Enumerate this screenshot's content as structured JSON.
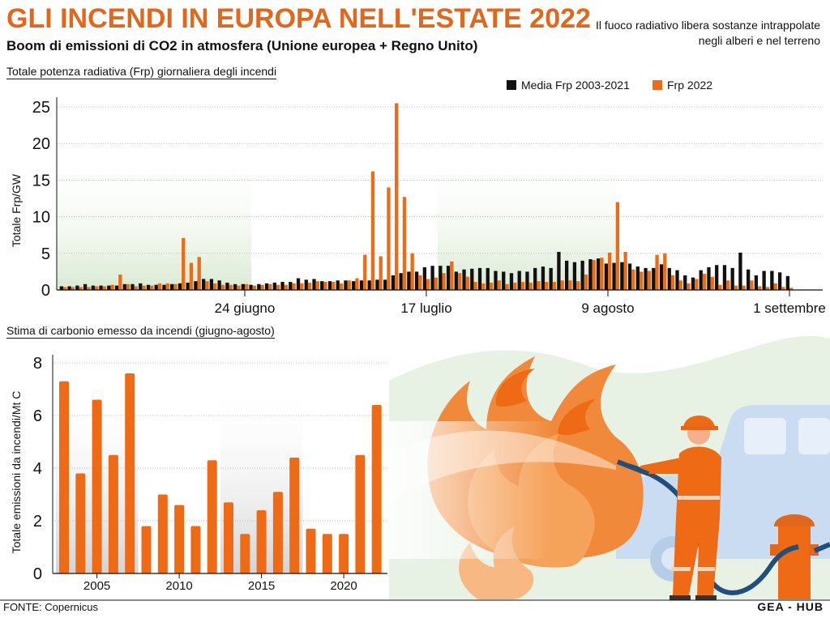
{
  "header": {
    "title": "GLI INCENDI IN EUROPA NELL'ESTATE 2022",
    "subtitle": "Boom di emissioni di CO2 in atmosfera (Unione europea + Regno Unito)",
    "note_line1": "Il fuoco radiativo libera sostanze intrappolate",
    "note_line2": "negli alberi e nel terreno"
  },
  "footer": {
    "source": "FONTE: Copernicus",
    "credit": "GEA - HUB"
  },
  "colors": {
    "title": "#e2661b",
    "frp_2022": "#ee6a14",
    "frp_mean": "#111111",
    "emissions": "#ee6a14",
    "highlight_green": "#e4f0df",
    "highlight_gray": "#dcdcdc"
  },
  "illustration": "firefighter-hosing-fire-illustration",
  "chart_data": [
    {
      "type": "bar",
      "section_label": "Totale potenza radiativa (Frp) giornaliera degli incendi",
      "ylabel": "Totale Frp/GW",
      "xlabel": "",
      "ylim": [
        0,
        25
      ],
      "yticks": [
        0,
        5,
        10,
        15,
        20,
        25
      ],
      "xtick_labels": [
        {
          "label": "24 giugno",
          "day": 23
        },
        {
          "label": "17 luglio",
          "day": 46
        },
        {
          "label": "9 agosto",
          "day": 69
        },
        {
          "label": "1 settembre",
          "day": 92
        }
      ],
      "day_start": "1 giugno",
      "grid": true,
      "legend": "top-right",
      "series": [
        {
          "name": "Media Frp 2003-2021",
          "values": [
            0.5,
            0.5,
            0.6,
            0.8,
            0.6,
            0.6,
            0.6,
            0.6,
            0.8,
            0.8,
            0.9,
            0.7,
            0.7,
            0.7,
            0.8,
            0.9,
            1.0,
            1.2,
            1.5,
            1.5,
            1.3,
            1.0,
            0.8,
            0.8,
            0.7,
            0.8,
            0.9,
            1.0,
            1.1,
            1.1,
            1.6,
            1.4,
            1.5,
            1.2,
            1.2,
            1.3,
            1.3,
            1.2,
            1.3,
            1.3,
            1.4,
            1.4,
            2.0,
            2.3,
            2.5,
            2.5,
            3.1,
            3.3,
            3.3,
            3.3,
            2.5,
            2.8,
            2.9,
            3.0,
            3.0,
            2.6,
            2.5,
            2.3,
            2.6,
            2.5,
            3.0,
            3.2,
            3.0,
            5.2,
            4.0,
            3.8,
            4.0,
            4.2,
            4.3,
            3.6,
            3.7,
            3.8,
            3.6,
            3.2,
            3.0,
            3.0,
            3.5,
            3.0,
            2.7,
            2.0,
            1.7,
            2.7,
            3.1,
            3.4,
            3.4,
            3.0,
            5.1,
            2.8,
            2.0,
            2.6,
            2.6,
            2.4,
            1.9
          ]
        },
        {
          "name": "Frp 2022",
          "values": [
            0.4,
            0.4,
            0.4,
            0.4,
            0.5,
            0.5,
            0.7,
            2.1,
            0.8,
            0.5,
            0.6,
            0.6,
            0.9,
            0.9,
            0.8,
            7.1,
            3.7,
            4.5,
            1.2,
            0.9,
            0.7,
            0.7,
            0.6,
            0.8,
            0.6,
            0.7,
            0.8,
            0.7,
            0.7,
            0.9,
            0.9,
            1.0,
            1.2,
            1.1,
            1.1,
            0.9,
            1.3,
            1.6,
            4.8,
            16.2,
            4.6,
            14.0,
            25.5,
            12.7,
            5.0,
            2.0,
            1.5,
            1.7,
            2.3,
            3.9,
            2.3,
            1.8,
            1.1,
            0.9,
            1.0,
            1.3,
            0.8,
            1.0,
            1.1,
            1.0,
            1.2,
            1.1,
            1.1,
            1.3,
            1.3,
            1.2,
            2.1,
            4.1,
            4.4,
            5.1,
            12.0,
            5.2,
            2.8,
            2.5,
            2.6,
            4.8,
            5.0,
            2.0,
            1.3,
            0.9,
            1.5,
            2.2,
            1.8,
            0.7,
            1.3,
            0.6,
            0.6,
            1.3,
            0.5,
            0.4,
            0.9,
            0.4,
            0.3
          ]
        }
      ]
    },
    {
      "type": "bar",
      "section_label": "Stima di carbonio emesso da incendi (giugno-agosto)",
      "ylabel": "Totale emissioni da incendi/Mt C",
      "xlabel": "",
      "ylim": [
        0,
        8
      ],
      "yticks": [
        0,
        2,
        4,
        6,
        8
      ],
      "xtick_labels": [
        "2005",
        "2010",
        "2015",
        "2020"
      ],
      "categories": [
        "2003",
        "2004",
        "2005",
        "2006",
        "2007",
        "2008",
        "2009",
        "2010",
        "2011",
        "2012",
        "2013",
        "2014",
        "2015",
        "2016",
        "2017",
        "2018",
        "2019",
        "2020",
        "2021",
        "2022"
      ],
      "values": [
        7.3,
        3.8,
        6.6,
        4.5,
        7.6,
        1.8,
        3.0,
        2.6,
        1.8,
        4.3,
        2.7,
        1.5,
        2.4,
        3.1,
        4.4,
        1.7,
        1.5,
        1.5,
        4.5,
        6.4
      ]
    }
  ]
}
